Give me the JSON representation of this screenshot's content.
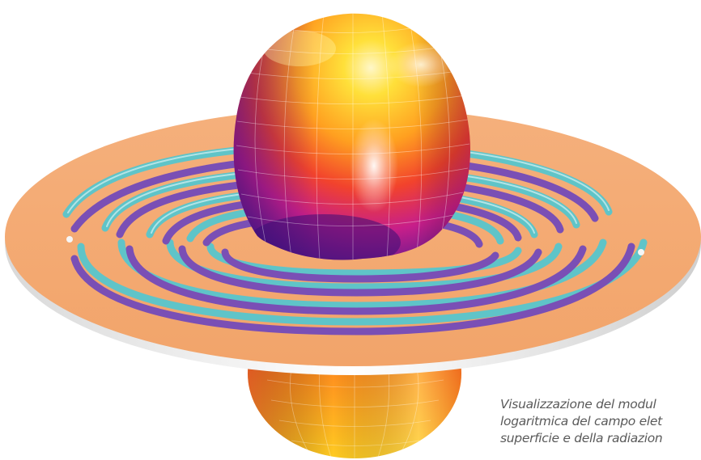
{
  "image": {
    "subject": "spiral-antenna-radiation-pattern",
    "colors": {
      "disk_top": "#F4A872",
      "disk_edge": "#F6F6F6",
      "spiral_teal": "#5FC4C8",
      "spiral_purple": "#7A4FB5",
      "lobe_yellow": "#FFD21F",
      "lobe_orange": "#FF8A1E",
      "lobe_red": "#EF3A2C",
      "lobe_magenta": "#C21C8E",
      "lobe_purple": "#4E1A8C"
    }
  },
  "caption": {
    "lines": [
      "Visualizzazione del modul",
      "logaritmica del campo elet",
      "superficie e della radiazion"
    ]
  }
}
